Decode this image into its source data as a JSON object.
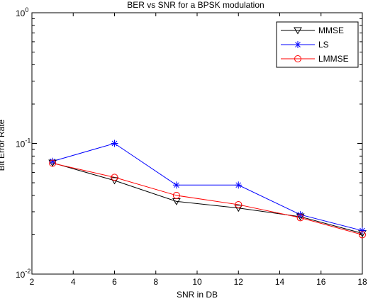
{
  "chart_data": {
    "type": "line",
    "title": "BER vs SNR for a BPSK modulation",
    "xlabel": "SNR in DB",
    "ylabel": "Bit Error Rate",
    "xlim": [
      2,
      18
    ],
    "ylim": [
      0.01,
      1
    ],
    "yscale": "log",
    "xticks": [
      "2",
      "4",
      "6",
      "8",
      "10",
      "12",
      "14",
      "16",
      "18"
    ],
    "yticks": [
      {
        "base": "10",
        "exp": "0",
        "value": 1
      },
      {
        "base": "10",
        "exp": "-1",
        "value": 0.1
      },
      {
        "base": "10",
        "exp": "-2",
        "value": 0.01
      }
    ],
    "grid": false,
    "legend_position": "top-right",
    "x": [
      3,
      6,
      9,
      12,
      15,
      18
    ],
    "series": [
      {
        "name": "MMSE",
        "color": "#000000",
        "marker": "triangle-down",
        "values": [
          0.071,
          0.052,
          0.036,
          0.032,
          0.0275,
          0.0205
        ]
      },
      {
        "name": "LS",
        "color": "#0000ff",
        "marker": "star",
        "values": [
          0.073,
          0.1,
          0.048,
          0.048,
          0.0285,
          0.0215
        ]
      },
      {
        "name": "LMMSE",
        "color": "#ff0000",
        "marker": "circle",
        "values": [
          0.0705,
          0.055,
          0.04,
          0.034,
          0.027,
          0.02
        ]
      }
    ]
  }
}
